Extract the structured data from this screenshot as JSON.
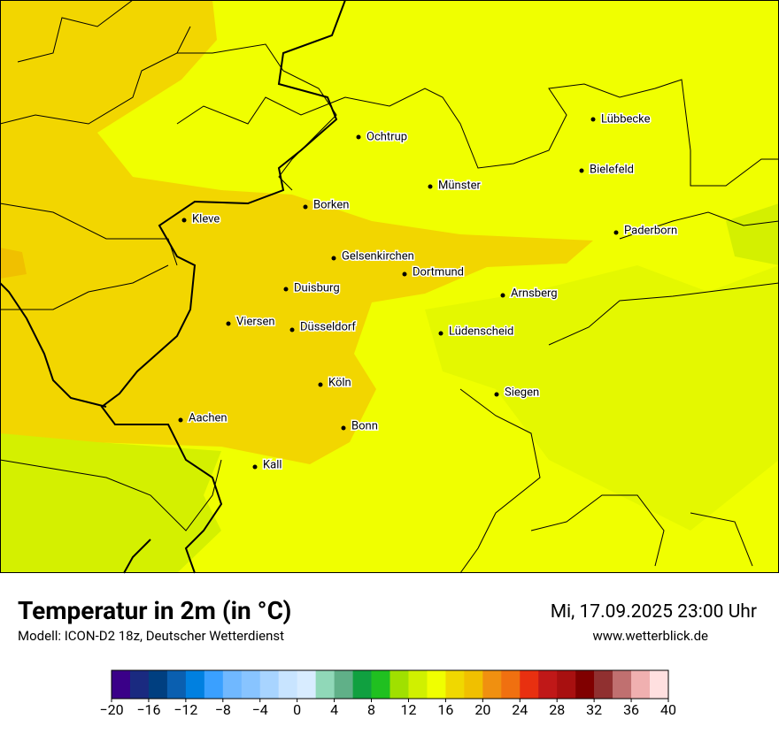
{
  "map": {
    "cities": [
      "Lübbecke",
      "Ochtrup",
      "Bielefeld",
      "Münster",
      "Borken",
      "Kleve",
      "Paderborn",
      "Gelsenkirchen",
      "Dortmund",
      "Duisburg",
      "Arnsberg",
      "Viersen",
      "Düsseldorf",
      "Lüdenscheid",
      "Köln",
      "Siegen",
      "Aachen",
      "Bonn",
      "Kall"
    ]
  },
  "footer": {
    "title": "Temperatur in 2m (in °C)",
    "subtitle": "Modell: ICON-D2 18z, Deutscher Wetterdienst",
    "datetime": "Mi, 17.09.2025 23:00 Uhr",
    "website": "www.wetterblick.de"
  },
  "colorbar": {
    "range": [
      -20,
      40
    ],
    "colors": [
      "#3a0088",
      "#1a2a80",
      "#003f80",
      "#0a5fb0",
      "#0080e0",
      "#3aa0ff",
      "#70b8ff",
      "#88c4ff",
      "#a8d4ff",
      "#c8e4ff",
      "#d8ecff",
      "#90d8b8",
      "#60b088",
      "#10a040",
      "#20c020",
      "#a0e000",
      "#d0f000",
      "#f0ff00",
      "#f0d800",
      "#f0c000",
      "#f09010",
      "#f07010",
      "#e83010",
      "#c01818",
      "#a81010",
      "#800000",
      "#903030",
      "#c07070",
      "#f0b0b0",
      "#ffe0e0"
    ],
    "ticks": [
      {
        "value": -20,
        "label": "−20"
      },
      {
        "value": -16,
        "label": "−16"
      },
      {
        "value": -12,
        "label": "−12"
      },
      {
        "value": -8,
        "label": "−8"
      },
      {
        "value": -4,
        "label": "−4"
      },
      0,
      4,
      8,
      12,
      16,
      20,
      24,
      28,
      32,
      36,
      40
    ]
  }
}
